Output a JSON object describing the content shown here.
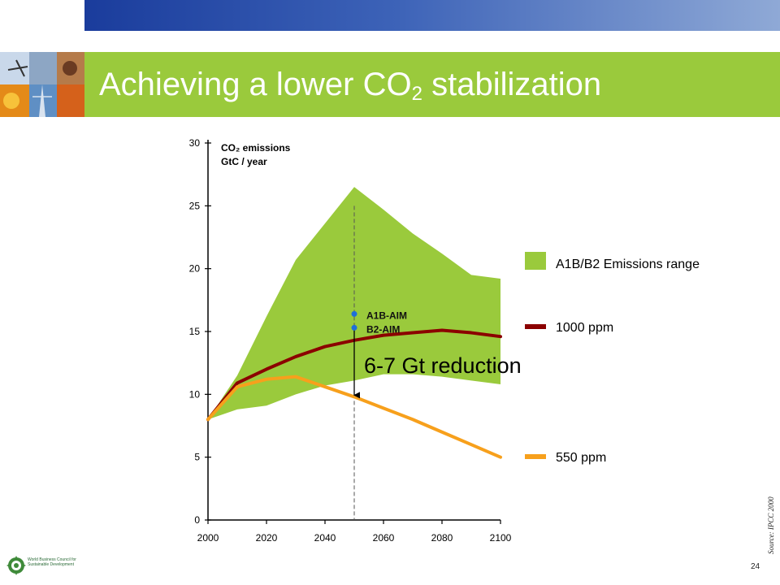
{
  "title": {
    "main": "Achieving a lower CO",
    "sub": "2",
    "rest": " stabilization"
  },
  "source": "Source: IPCC 2000",
  "page_number": "24",
  "logo_text": "World Business Council for Sustainable Development",
  "colors": {
    "range": "#9aca3c",
    "ppm1000": "#8b0000",
    "ppm550": "#f7a01c",
    "aim_dots": "#1e6fd9",
    "title_bar": "#9aca3c"
  },
  "chart_data": {
    "type": "line",
    "ylabel_line1": "CO₂ emissions",
    "ylabel_line2": "GtC / year",
    "xlim": [
      2000,
      2100
    ],
    "ylim": [
      0,
      30
    ],
    "x_ticks": [
      "2000",
      "2020",
      "2040",
      "2060",
      "2080",
      "2100"
    ],
    "y_ticks": [
      "0",
      "5",
      "10",
      "15",
      "20",
      "25",
      "30"
    ],
    "range": {
      "name": "A1B/B2 Emissions range",
      "x": [
        2000,
        2010,
        2020,
        2030,
        2040,
        2050,
        2060,
        2070,
        2080,
        2090,
        2100
      ],
      "upper": [
        8,
        11.5,
        16.2,
        20.7,
        23.6,
        26.5,
        24.7,
        22.8,
        21.2,
        19.5,
        19.2
      ],
      "lower": [
        8,
        8.8,
        9.1,
        10,
        10.7,
        11.1,
        11.6,
        11.6,
        11.4,
        11.1,
        10.8
      ]
    },
    "series": [
      {
        "name": "1000 ppm",
        "x": [
          2000,
          2010,
          2020,
          2030,
          2040,
          2050,
          2060,
          2070,
          2080,
          2090,
          2100
        ],
        "values": [
          8,
          10.9,
          12,
          13,
          13.8,
          14.3,
          14.7,
          14.9,
          15.1,
          14.9,
          14.6
        ]
      },
      {
        "name": "550 ppm",
        "x": [
          2000,
          2010,
          2020,
          2030,
          2040,
          2050,
          2060,
          2070,
          2080,
          2090,
          2100
        ],
        "values": [
          8,
          10.6,
          11.2,
          11.4,
          10.6,
          9.8,
          8.9,
          8.0,
          7.0,
          6.0,
          5.0
        ]
      }
    ],
    "markers": [
      {
        "label": "A1B-AIM",
        "x": 2050,
        "y": 16.4
      },
      {
        "label": "B2-AIM",
        "x": 2050,
        "y": 15.3
      }
    ],
    "reference_year": 2050,
    "annotation": {
      "text": "6-7 Gt reduction",
      "x": 2050,
      "from": 15.3,
      "to": 9.8
    }
  }
}
